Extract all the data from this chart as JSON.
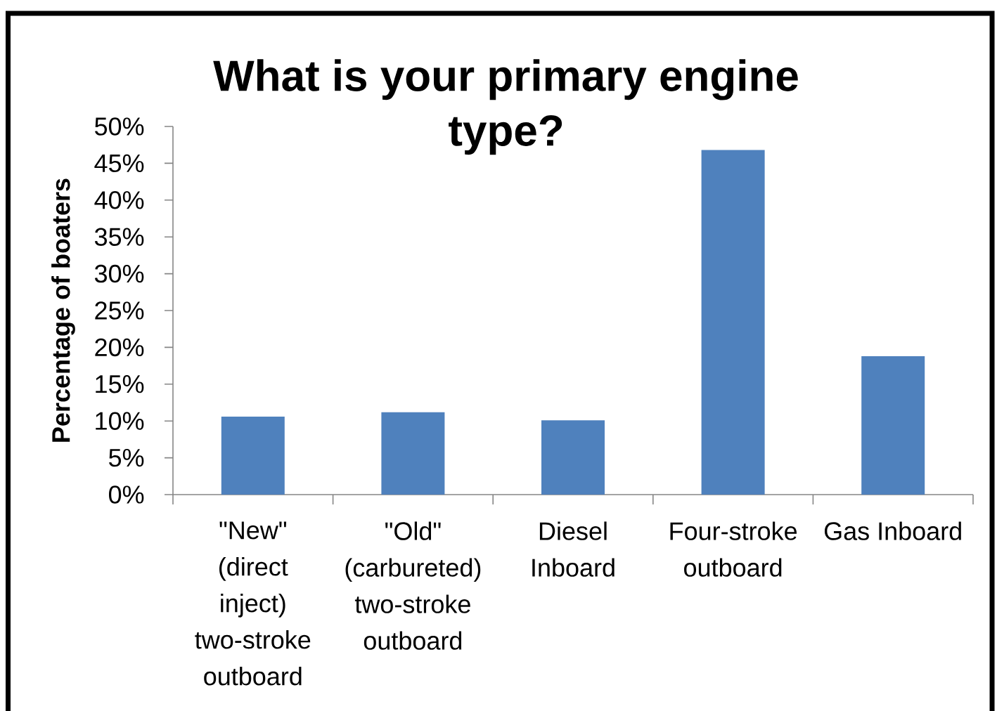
{
  "chart_data": {
    "type": "bar",
    "title": "What is your primary engine type?",
    "ylabel": "Percentage of boaters",
    "categories": [
      "\"New\" (direct inject) two-stroke outboard",
      "\"Old\" (carbureted) two-stroke outboard",
      "Diesel Inboard",
      "Four-stroke outboard",
      "Gas Inboard"
    ],
    "values": [
      10.6,
      11.2,
      10.1,
      46.8,
      18.8
    ],
    "color": "#4f81bd",
    "ylim": [
      0,
      50
    ],
    "yticks": [
      {
        "value": 0,
        "label": "0%"
      },
      {
        "value": 5,
        "label": "5%"
      },
      {
        "value": 10,
        "label": "10%"
      },
      {
        "value": 15,
        "label": "15%"
      },
      {
        "value": 20,
        "label": "20%"
      },
      {
        "value": 25,
        "label": "25%"
      },
      {
        "value": 30,
        "label": "30%"
      },
      {
        "value": 35,
        "label": "35%"
      },
      {
        "value": 40,
        "label": "40%"
      },
      {
        "value": 45,
        "label": "45%"
      },
      {
        "value": 50,
        "label": "50%"
      }
    ]
  }
}
